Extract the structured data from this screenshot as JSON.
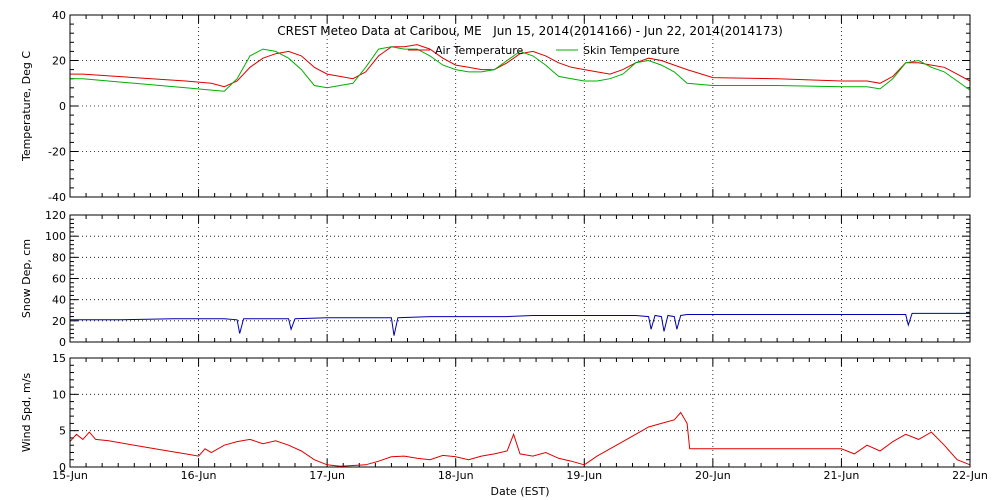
{
  "chart_data": {
    "type": "line",
    "title": "CREST Meteo Data at Caribou, ME   Jun 15, 2014(2014166) - Jun 22, 2014(2014173)",
    "xlabel": "Date (EST)",
    "x_ticks": [
      "15-Jun",
      "16-Jun",
      "17-Jun",
      "18-Jun",
      "19-Jun",
      "20-Jun",
      "21-Jun",
      "22-Jun"
    ],
    "xlim": [
      0,
      7
    ],
    "grid": true,
    "legend_placement": "top-right",
    "panels": [
      {
        "ylabel": "Temperature, Deg C",
        "ylim": [
          -40,
          40
        ],
        "yticks": [
          -40,
          -20,
          0,
          20,
          40
        ],
        "series": [
          {
            "name": "Air Temperature",
            "color": "#e00000",
            "x": [
              0,
              0.1,
              0.5,
              0.9,
              1.1,
              1.2,
              1.3,
              1.4,
              1.5,
              1.6,
              1.7,
              1.8,
              1.9,
              2.0,
              2.1,
              2.2,
              2.3,
              2.4,
              2.5,
              2.6,
              2.7,
              2.8,
              2.9,
              3.0,
              3.1,
              3.2,
              3.3,
              3.4,
              3.5,
              3.6,
              3.7,
              3.8,
              3.9,
              4.0,
              4.1,
              4.2,
              4.3,
              4.4,
              4.5,
              4.6,
              4.7,
              4.8,
              5.0,
              5.5,
              6.0,
              6.2,
              6.3,
              6.4,
              6.5,
              6.6,
              6.7,
              6.8,
              6.9,
              7.0
            ],
            "y": [
              14,
              14,
              12.5,
              11,
              10,
              8.5,
              11,
              17,
              21,
              23,
              24,
              22,
              17,
              14,
              13,
              12,
              15,
              22,
              26,
              26,
              27,
              25,
              21,
              18,
              17,
              16,
              16,
              19,
              23,
              24,
              22,
              19,
              17,
              16,
              15,
              14,
              16,
              19,
              21,
              20,
              18,
              16,
              12.5,
              12,
              11,
              11,
              10,
              13,
              19,
              19,
              18,
              17,
              14,
              11
            ]
          },
          {
            "name": "Skin Temperature",
            "color": "#00b000",
            "x": [
              0,
              0.1,
              0.5,
              0.9,
              1.1,
              1.2,
              1.3,
              1.4,
              1.5,
              1.6,
              1.7,
              1.8,
              1.9,
              2.0,
              2.1,
              2.2,
              2.3,
              2.4,
              2.5,
              2.6,
              2.7,
              2.8,
              2.9,
              3.0,
              3.1,
              3.2,
              3.3,
              3.4,
              3.5,
              3.6,
              3.7,
              3.8,
              3.9,
              4.0,
              4.1,
              4.2,
              4.3,
              4.4,
              4.5,
              4.6,
              4.7,
              4.8,
              5.0,
              5.5,
              6.0,
              6.2,
              6.3,
              6.4,
              6.5,
              6.6,
              6.7,
              6.8,
              6.9,
              7.0
            ],
            "y": [
              12,
              12,
              10,
              8,
              7,
              6.5,
              12,
              22,
              25,
              24,
              21,
              16,
              9,
              8,
              9,
              10,
              17,
              25,
              26,
              25,
              25,
              22,
              18,
              16,
              15,
              15,
              16,
              20,
              24,
              22,
              18,
              13,
              12,
              11,
              11,
              12,
              14,
              19,
              20,
              18,
              15,
              10,
              9,
              9,
              8.5,
              8.5,
              7.5,
              12,
              19,
              20,
              17,
              15,
              11,
              7
            ]
          }
        ]
      },
      {
        "ylabel": "Snow Dep, cm",
        "ylim": [
          0,
          120
        ],
        "yticks": [
          0,
          20,
          40,
          60,
          80,
          100,
          120
        ],
        "series": [
          {
            "name": "",
            "color": "#0000b0",
            "x": [
              0,
              0.2,
              0.4,
              0.6,
              0.8,
              1.0,
              1.2,
              1.3,
              1.32,
              1.35,
              1.5,
              1.7,
              1.72,
              1.75,
              2.0,
              2.2,
              2.4,
              2.5,
              2.52,
              2.55,
              2.8,
              3.0,
              3.2,
              3.4,
              3.6,
              3.8,
              4.0,
              4.2,
              4.4,
              4.5,
              4.52,
              4.55,
              4.6,
              4.62,
              4.65,
              4.7,
              4.72,
              4.75,
              4.8,
              5.0,
              5.5,
              6.0,
              6.2,
              6.4,
              6.5,
              6.52,
              6.55,
              6.7,
              7.0
            ],
            "y": [
              21,
              21,
              21,
              21.5,
              22,
              22,
              22,
              21,
              8,
              22,
              22,
              22,
              12,
              22,
              23,
              23,
              23,
              23,
              6,
              23,
              24,
              24,
              24,
              24,
              25,
              25,
              25,
              25,
              25,
              24,
              12,
              25,
              24,
              10,
              25,
              24,
              12,
              25,
              26,
              26,
              26,
              26,
              26,
              26,
              26,
              16,
              27,
              27,
              27
            ]
          }
        ]
      },
      {
        "ylabel": "Wind Spd, m/s",
        "ylim": [
          0,
          15
        ],
        "yticks": [
          0,
          5,
          10,
          15
        ],
        "series": [
          {
            "name": "",
            "color": "#e00000",
            "x": [
              0,
              0.05,
              0.1,
              0.15,
              0.2,
              0.3,
              0.5,
              0.7,
              0.9,
              1.0,
              1.05,
              1.1,
              1.2,
              1.3,
              1.4,
              1.5,
              1.6,
              1.7,
              1.8,
              1.9,
              2.0,
              2.1,
              2.2,
              2.3,
              2.4,
              2.5,
              2.6,
              2.7,
              2.8,
              2.9,
              3.0,
              3.1,
              3.2,
              3.3,
              3.4,
              3.45,
              3.5,
              3.6,
              3.7,
              3.8,
              3.9,
              4.0,
              4.1,
              4.2,
              4.3,
              4.4,
              4.5,
              4.6,
              4.7,
              4.75,
              4.8,
              4.82,
              5.0,
              5.5,
              6.0,
              6.1,
              6.2,
              6.3,
              6.4,
              6.5,
              6.6,
              6.7,
              6.8,
              6.9,
              7.0
            ],
            "y": [
              3.5,
              4.5,
              3.8,
              4.8,
              3.8,
              3.6,
              3.0,
              2.4,
              1.8,
              1.5,
              2.5,
              2.0,
              3.0,
              3.5,
              3.8,
              3.2,
              3.6,
              3.0,
              2.2,
              1.0,
              0.3,
              0.1,
              0.2,
              0.3,
              0.8,
              1.4,
              1.5,
              1.2,
              1.0,
              1.6,
              1.4,
              1.0,
              1.5,
              1.8,
              2.2,
              4.5,
              1.8,
              1.5,
              2.0,
              1.2,
              0.8,
              0.3,
              1.5,
              2.5,
              3.5,
              4.5,
              5.5,
              6.0,
              6.5,
              7.5,
              6.0,
              2.5,
              2.5,
              2.5,
              2.5,
              1.8,
              3.0,
              2.2,
              3.5,
              4.5,
              3.8,
              4.8,
              3.0,
              1.0,
              0.3
            ]
          }
        ]
      }
    ]
  }
}
